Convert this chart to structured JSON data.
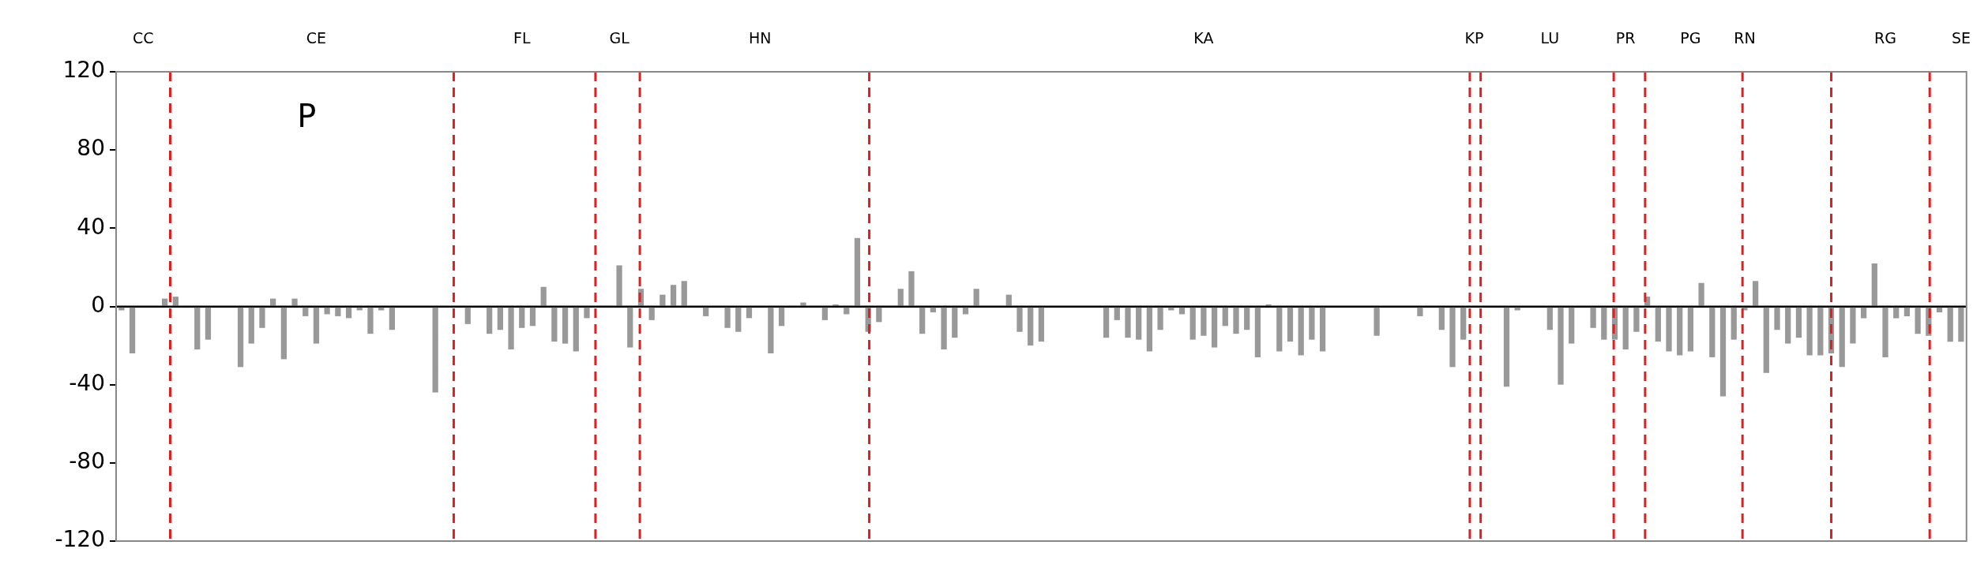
{
  "chart_data": {
    "type": "bar",
    "color": "#999999",
    "categories": [
      null,
      null,
      "CC",
      null,
      null,
      null,
      null,
      null,
      null,
      null,
      null,
      null,
      null,
      null,
      null,
      null,
      null,
      null,
      "CE",
      null,
      null,
      null,
      null,
      null,
      null,
      null,
      null,
      null,
      null,
      null,
      null,
      null,
      null,
      null,
      null,
      null,
      null,
      "FL",
      null,
      null,
      null,
      null,
      null,
      null,
      null,
      null,
      "GL",
      null,
      null,
      null,
      null,
      null,
      null,
      null,
      null,
      null,
      null,
      null,
      null,
      "HN",
      null,
      null,
      null,
      null,
      null,
      null,
      null,
      null,
      null,
      null,
      null,
      null,
      null,
      null,
      null,
      null,
      null,
      null,
      null,
      null,
      null,
      null,
      null,
      null,
      null,
      null,
      null,
      null,
      null,
      null,
      null,
      null,
      null,
      null,
      null,
      null,
      null,
      null,
      null,
      null,
      "KA",
      null,
      null,
      null,
      null,
      null,
      null,
      null,
      null,
      null,
      null,
      null,
      null,
      null,
      null,
      null,
      null,
      null,
      null,
      null,
      null,
      null,
      null,
      null,
      null,
      "KP",
      null,
      null,
      null,
      null,
      null,
      null,
      "LU",
      null,
      null,
      null,
      null,
      null,
      null,
      "PR",
      null,
      null,
      null,
      null,
      null,
      "PG",
      null,
      null,
      null,
      null,
      "RN",
      null,
      null,
      null,
      null,
      null,
      null,
      null,
      null,
      null,
      null,
      null,
      null,
      "RG",
      null,
      null,
      null,
      null,
      null,
      null,
      "SE"
    ],
    "values": [
      -2,
      -24,
      0,
      0,
      4,
      5,
      0,
      -22,
      -17,
      0,
      0,
      -31,
      -19,
      -11,
      4,
      -27,
      4,
      -5,
      -19,
      -4,
      -5,
      -6,
      -2,
      -14,
      -2,
      -12,
      0,
      0,
      0,
      -44,
      0,
      0,
      -9,
      0,
      -14,
      -12,
      -22,
      -11,
      -10,
      10,
      -18,
      -19,
      -23,
      -6,
      0,
      0,
      21,
      -21,
      9,
      -7,
      6,
      11,
      13,
      0,
      -5,
      0,
      -11,
      -13,
      -6,
      0,
      -24,
      -10,
      0,
      2,
      0,
      -7,
      1,
      -4,
      35,
      -13,
      -8,
      0,
      9,
      18,
      -14,
      -3,
      -22,
      -16,
      -4,
      9,
      0,
      0,
      6,
      -13,
      -20,
      -18,
      0,
      0,
      0,
      0,
      0,
      -16,
      -7,
      -16,
      -17,
      -23,
      -12,
      -2,
      -4,
      -17,
      -15,
      -21,
      -10,
      -14,
      -12,
      -26,
      1,
      -23,
      -18,
      -25,
      -17,
      -23,
      0,
      0,
      0,
      0,
      -15,
      0,
      0,
      0,
      -5,
      0,
      -12,
      -31,
      -17,
      0,
      0,
      0,
      -41,
      -2,
      0,
      0,
      -12,
      -40,
      -19,
      0,
      -11,
      -17,
      -17,
      -22,
      -13,
      5,
      -18,
      -23,
      -25,
      -23,
      12,
      -26,
      -46,
      -17,
      -2,
      13,
      -34,
      -12,
      -19,
      -16,
      -25,
      -25,
      -24,
      -31,
      -19,
      -6,
      22,
      -26,
      -6,
      -5,
      -14,
      -15,
      -3,
      -18,
      -18
    ],
    "ylim": [
      -120,
      120
    ],
    "yticks": [
      -120,
      -80,
      -40,
      0,
      40,
      80,
      120
    ],
    "annotations": [
      "P"
    ]
  }
}
